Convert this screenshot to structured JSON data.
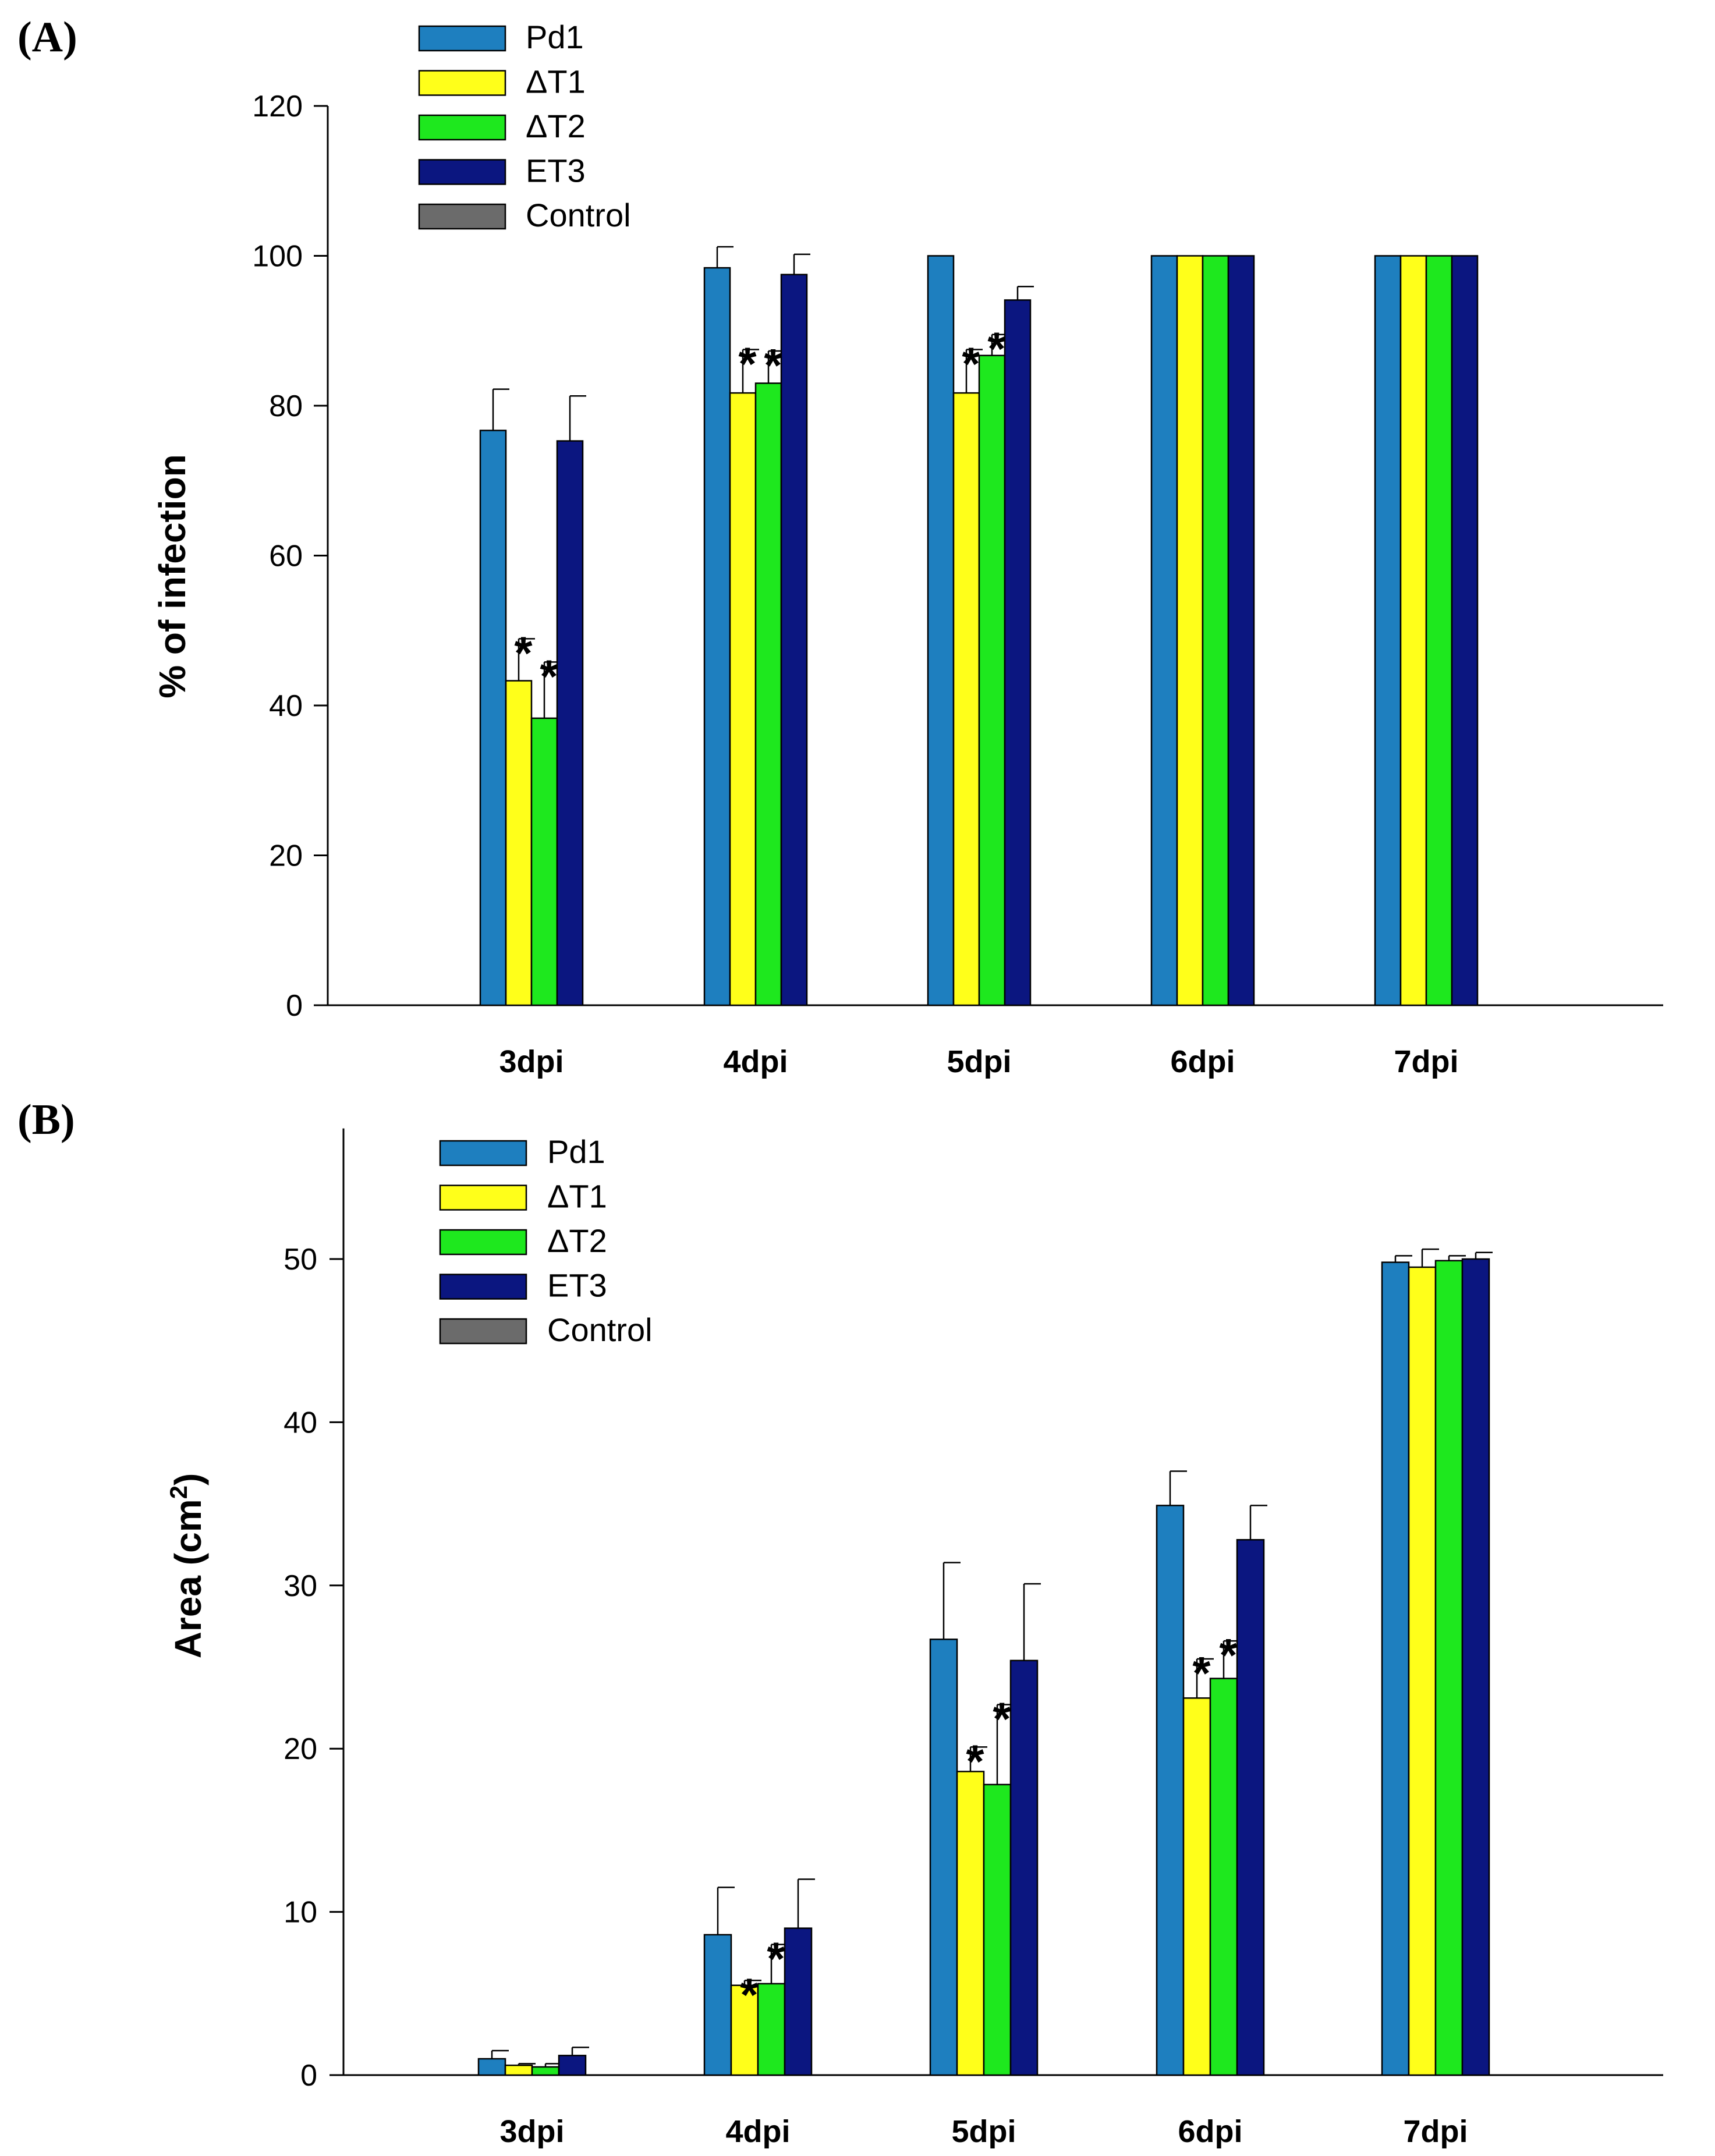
{
  "chart_data": [
    {
      "panel_label": "(A)",
      "type": "bar",
      "ylabel": "% of infection",
      "xlabel": "",
      "ylim": [
        0,
        120
      ],
      "yticks": [
        0,
        20,
        40,
        60,
        80,
        100,
        120
      ],
      "categories": [
        "3dpi",
        "4dpi",
        "5dpi",
        "6dpi",
        "7dpi"
      ],
      "series": [
        {
          "name": "Pd1",
          "color": "#1e7fbf",
          "values": [
            76.7,
            98.4,
            100,
            100,
            100
          ],
          "errors": [
            5.5,
            2.8,
            0,
            0,
            0
          ]
        },
        {
          "name": "ΔT1",
          "color": "#ffff1a",
          "values": [
            43.3,
            81.7,
            81.7,
            100,
            100
          ],
          "errors": [
            5.6,
            5.8,
            5.8,
            0,
            0
          ]
        },
        {
          "name": "ΔT2",
          "color": "#1ee81e",
          "values": [
            38.3,
            83.0,
            86.7,
            100,
            100
          ],
          "errors": [
            7.5,
            4.3,
            2.8,
            0,
            0
          ]
        },
        {
          "name": "ET3",
          "color": "#0b1680",
          "values": [
            75.3,
            97.5,
            94.1,
            100,
            100
          ],
          "errors": [
            6.0,
            2.7,
            1.8,
            0,
            0
          ]
        },
        {
          "name": "Control",
          "color": "#6b6b6b",
          "values": [
            0,
            0,
            0,
            0,
            0
          ],
          "errors": [
            0,
            0,
            0,
            0,
            0
          ]
        }
      ],
      "annotations": [
        {
          "text": "*",
          "category": "3dpi",
          "series": "ΔT1"
        },
        {
          "text": "*",
          "category": "3dpi",
          "series": "ΔT2"
        },
        {
          "text": "*",
          "category": "4dpi",
          "series": "ΔT1"
        },
        {
          "text": "*",
          "category": "4dpi",
          "series": "ΔT2"
        },
        {
          "text": "*",
          "category": "5dpi",
          "series": "ΔT1"
        },
        {
          "text": "*",
          "category": "5dpi",
          "series": "ΔT2"
        }
      ],
      "legend": {
        "position": "top-left",
        "entries": [
          "Pd1",
          "ΔT1",
          "ΔT2",
          "ET3",
          "Control"
        ]
      }
    },
    {
      "panel_label": "(B)",
      "type": "bar",
      "ylabel": "Area (cm",
      "ylabel_sup": "2",
      "ylabel_end": ")",
      "xlabel": "",
      "ylim": [
        0,
        58
      ],
      "yticks": [
        0,
        10,
        20,
        30,
        40,
        50
      ],
      "categories": [
        "3dpi",
        "4dpi",
        "5dpi",
        "6dpi",
        "7dpi"
      ],
      "series": [
        {
          "name": "Pd1",
          "color": "#1e7fbf",
          "values": [
            1.0,
            8.6,
            26.7,
            34.9,
            49.8
          ],
          "errors": [
            0.5,
            2.9,
            4.7,
            2.1,
            0.4
          ]
        },
        {
          "name": "ΔT1",
          "color": "#ffff1a",
          "values": [
            0.6,
            5.5,
            18.6,
            23.1,
            49.5
          ],
          "errors": [
            0.1,
            0.3,
            1.5,
            2.4,
            1.1
          ]
        },
        {
          "name": "ΔT2",
          "color": "#1ee81e",
          "values": [
            0.5,
            5.6,
            17.8,
            24.3,
            49.9
          ],
          "errors": [
            0.2,
            2.4,
            4.9,
            2.3,
            0.3
          ]
        },
        {
          "name": "ET3",
          "color": "#0b1680",
          "values": [
            1.2,
            9.0,
            25.4,
            32.8,
            50.0
          ],
          "errors": [
            0.5,
            3.0,
            4.7,
            2.1,
            0.4
          ]
        },
        {
          "name": "Control",
          "color": "#6b6b6b",
          "values": [
            0,
            0,
            0,
            0,
            0
          ],
          "errors": [
            0,
            0,
            0,
            0,
            0
          ]
        }
      ],
      "annotations": [
        {
          "text": "*",
          "category": "4dpi",
          "series": "ΔT1"
        },
        {
          "text": "*",
          "category": "4dpi",
          "series": "ΔT2"
        },
        {
          "text": "*",
          "category": "5dpi",
          "series": "ΔT1"
        },
        {
          "text": "*",
          "category": "5dpi",
          "series": "ΔT2"
        },
        {
          "text": "*",
          "category": "6dpi",
          "series": "ΔT1"
        },
        {
          "text": "*",
          "category": "6dpi",
          "series": "ΔT2"
        }
      ],
      "legend": {
        "position": "top-left",
        "entries": [
          "Pd1",
          "ΔT1",
          "ΔT2",
          "ET3",
          "Control"
        ]
      }
    }
  ]
}
